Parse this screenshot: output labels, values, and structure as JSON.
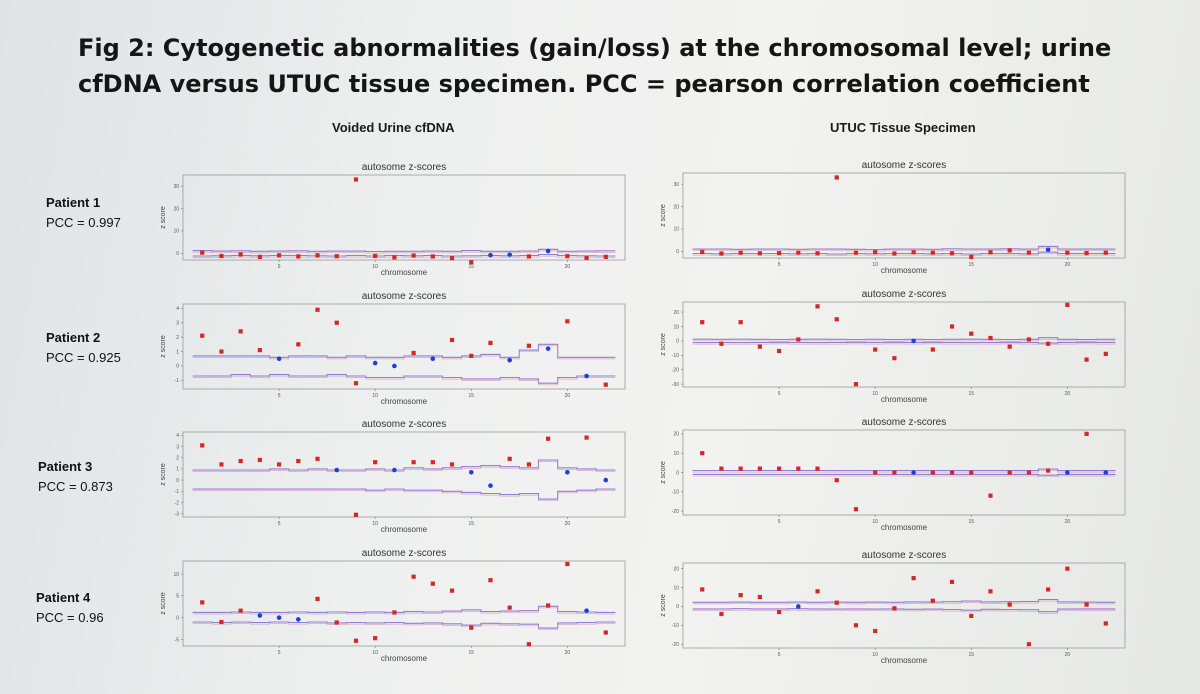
{
  "figure": {
    "title": "Fig 2: Cytogenetic abnormalities (gain/loss) at the chromosomal level; urine cfDNA versus UTUC tissue specimen. PCC = pearson correlation coefficient"
  },
  "columns": [
    {
      "heading": "Voided Urine cfDNA"
    },
    {
      "heading": "UTUC Tissue Specimen"
    }
  ],
  "patients": [
    {
      "name": "Patient 1",
      "pcc": "PCC = 0.997"
    },
    {
      "name": "Patient 2",
      "pcc": "PCC = 0.925"
    },
    {
      "name": "Patient 3",
      "pcc": "PCC = 0.873"
    },
    {
      "name": "Patient 4",
      "pcc": "PCC = 0.96"
    }
  ],
  "chart_data": [
    {
      "type": "scatter",
      "patient": "Patient 1",
      "specimen": "Voided Urine cfDNA",
      "title": "autosome z-scores",
      "xlabel": "chromosome",
      "ylabel": "z score",
      "xlim": [
        0,
        23
      ],
      "ylim": [
        -3,
        35
      ],
      "yticks": [
        0,
        10,
        20,
        30
      ],
      "xticks": [
        5,
        10,
        15,
        20
      ],
      "x": [
        1,
        2,
        3,
        4,
        5,
        6,
        7,
        8,
        9,
        10,
        11,
        12,
        13,
        14,
        15,
        16,
        17,
        18,
        19,
        20,
        21,
        22
      ],
      "y": [
        0.3,
        -1.2,
        -0.5,
        -1.6,
        -0.9,
        -1.4,
        -0.9,
        -1.3,
        33,
        -1.2,
        -1.8,
        -1.0,
        -1.4,
        -2.2,
        -4.0,
        -0.8,
        -0.6,
        -1.4,
        1.0,
        -1.3,
        -2.1,
        -1.6
      ],
      "normal": [
        false,
        false,
        false,
        false,
        false,
        false,
        false,
        false,
        false,
        false,
        false,
        false,
        false,
        false,
        false,
        true,
        true,
        false,
        true,
        false,
        false,
        false
      ],
      "band": {
        "upper": [
          1.2,
          1.0,
          1.1,
          0.9,
          1.0,
          1.1,
          0.9,
          1.0,
          1.0,
          0.8,
          0.9,
          0.9,
          1.0,
          0.9,
          1.2,
          0.9,
          0.9,
          1.0,
          1.8,
          0.9,
          1.0,
          1.1
        ],
        "lower": [
          -1.2,
          -1.1,
          -1.0,
          -1.1,
          -1.0,
          -1.0,
          -1.1,
          -1.2,
          -1.0,
          -1.2,
          -1.0,
          -1.1,
          -1.0,
          -1.2,
          -1.1,
          -1.0,
          -1.1,
          -1.0,
          -0.6,
          -1.0,
          -1.1,
          -1.2
        ]
      }
    },
    {
      "type": "scatter",
      "patient": "Patient 1",
      "specimen": "UTUC Tissue Specimen",
      "title": "autosome z-scores",
      "xlabel": "chromosome",
      "ylabel": "z score",
      "xlim": [
        0,
        23
      ],
      "ylim": [
        -3,
        35
      ],
      "yticks": [
        0,
        10,
        20,
        30
      ],
      "xticks": [
        5,
        10,
        15,
        20
      ],
      "x": [
        1,
        2,
        3,
        4,
        5,
        6,
        7,
        8,
        9,
        10,
        11,
        12,
        13,
        14,
        15,
        16,
        17,
        18,
        19,
        20,
        21,
        22
      ],
      "y": [
        -0.3,
        -1.0,
        -0.6,
        -0.9,
        -0.8,
        -0.6,
        -0.9,
        33,
        -0.6,
        -0.4,
        -1.0,
        -0.4,
        -0.6,
        -0.9,
        -2.5,
        -0.4,
        0.4,
        -0.6,
        0.7,
        -0.6,
        -0.8,
        -0.6
      ],
      "normal": [
        false,
        false,
        false,
        false,
        false,
        false,
        false,
        false,
        false,
        false,
        false,
        false,
        false,
        false,
        false,
        false,
        false,
        false,
        true,
        false,
        false,
        false
      ],
      "band": {
        "upper": [
          1.0,
          1.0,
          0.9,
          1.0,
          1.0,
          0.9,
          1.0,
          1.0,
          0.9,
          0.8,
          1.0,
          1.0,
          0.9,
          1.1,
          1.0,
          1.0,
          1.1,
          1.0,
          2.2,
          1.0,
          1.0,
          1.0
        ],
        "lower": [
          -1.0,
          -1.1,
          -1.0,
          -1.0,
          -1.0,
          -1.1,
          -1.0,
          -1.2,
          -1.0,
          -1.1,
          -1.0,
          -1.0,
          -1.1,
          -1.0,
          -1.2,
          -1.0,
          -1.0,
          -1.1,
          -0.4,
          -1.0,
          -1.0,
          -1.0
        ]
      }
    },
    {
      "type": "scatter",
      "patient": "Patient 2",
      "specimen": "Voided Urine cfDNA",
      "title": "autosome z-scores",
      "xlabel": "chromosome",
      "ylabel": "z score",
      "xlim": [
        0,
        23
      ],
      "ylim": [
        -1.6,
        4.3
      ],
      "yticks": [
        -1,
        0,
        1,
        2,
        3,
        4
      ],
      "xticks": [
        5,
        10,
        15,
        20
      ],
      "x": [
        1,
        2,
        3,
        4,
        5,
        6,
        7,
        8,
        9,
        10,
        11,
        12,
        13,
        14,
        15,
        16,
        17,
        18,
        19,
        20,
        21,
        22
      ],
      "y": [
        2.1,
        1.0,
        2.4,
        1.1,
        0.5,
        1.5,
        3.9,
        3.0,
        -1.2,
        0.2,
        0.0,
        0.9,
        0.5,
        1.8,
        0.7,
        1.6,
        0.4,
        1.4,
        1.2,
        3.1,
        -0.7,
        -1.3
      ],
      "normal": [
        false,
        false,
        false,
        false,
        true,
        false,
        false,
        false,
        false,
        true,
        true,
        false,
        true,
        false,
        false,
        false,
        true,
        false,
        true,
        false,
        true,
        false
      ],
      "band": {
        "upper": [
          0.7,
          0.7,
          0.7,
          0.7,
          0.6,
          0.7,
          0.7,
          0.6,
          0.7,
          0.6,
          0.6,
          0.7,
          0.7,
          0.6,
          0.7,
          0.8,
          0.6,
          1.1,
          1.5,
          0.6,
          0.6,
          0.6
        ],
        "lower": [
          -0.7,
          -0.7,
          -0.6,
          -0.7,
          -0.6,
          -0.7,
          -0.7,
          -0.6,
          -0.7,
          -0.8,
          -0.8,
          -0.7,
          -0.7,
          -0.8,
          -0.9,
          -0.9,
          -0.8,
          -0.9,
          -1.2,
          -0.8,
          -0.7,
          -0.7
        ]
      }
    },
    {
      "type": "scatter",
      "patient": "Patient 2",
      "specimen": "UTUC Tissue Specimen",
      "title": "autosome z-scores",
      "xlabel": "chromosome",
      "ylabel": "z score",
      "xlim": [
        0,
        23
      ],
      "ylim": [
        -32,
        27
      ],
      "yticks": [
        -30,
        -20,
        -10,
        0,
        10,
        20
      ],
      "xticks": [
        5,
        10,
        15,
        20
      ],
      "x": [
        1,
        2,
        3,
        4,
        5,
        6,
        7,
        8,
        9,
        10,
        11,
        12,
        13,
        14,
        15,
        16,
        17,
        18,
        19,
        20,
        21,
        22
      ],
      "y": [
        13,
        -2,
        13,
        -4,
        -7,
        1,
        24,
        15,
        -30,
        -6,
        -12,
        0,
        -6,
        10,
        5,
        2,
        -4,
        1,
        -2,
        25,
        -13,
        -9
      ],
      "normal": [
        false,
        false,
        false,
        false,
        false,
        false,
        false,
        false,
        false,
        false,
        false,
        true,
        false,
        false,
        false,
        false,
        false,
        false,
        false,
        false,
        false,
        false
      ],
      "band": {
        "upper": [
          1.2,
          1.1,
          1.2,
          1.1,
          1.0,
          1.1,
          1.2,
          1.1,
          1.0,
          1.1,
          1.0,
          1.1,
          1.0,
          1.1,
          1.2,
          1.1,
          1.0,
          1.1,
          2.2,
          1.1,
          1.0,
          1.1
        ],
        "lower": [
          -1.2,
          -1.1,
          -1.2,
          -1.1,
          -1.0,
          -1.1,
          -1.2,
          -1.1,
          -1.0,
          -1.1,
          -1.0,
          -1.1,
          -1.0,
          -1.1,
          -1.2,
          -1.1,
          -1.0,
          -1.1,
          -1.5,
          -1.1,
          -1.0,
          -1.1
        ]
      }
    },
    {
      "type": "scatter",
      "patient": "Patient 3",
      "specimen": "Voided Urine cfDNA",
      "title": "autosome z-scores",
      "xlabel": "chromosome",
      "ylabel": "z score",
      "xlim": [
        0,
        23
      ],
      "ylim": [
        -3.3,
        4.3
      ],
      "yticks": [
        -3,
        -2,
        -1,
        0,
        1,
        2,
        3,
        4
      ],
      "xticks": [
        5,
        10,
        15,
        20
      ],
      "x": [
        1,
        2,
        3,
        4,
        5,
        6,
        7,
        8,
        9,
        10,
        11,
        12,
        13,
        14,
        15,
        16,
        17,
        18,
        19,
        20,
        21,
        22
      ],
      "y": [
        3.1,
        1.4,
        1.7,
        1.8,
        1.4,
        1.7,
        1.9,
        0.9,
        -3.1,
        1.6,
        0.9,
        1.6,
        1.6,
        1.4,
        0.7,
        -0.5,
        1.9,
        1.4,
        3.7,
        0.7,
        3.8,
        0.0
      ],
      "normal": [
        false,
        false,
        false,
        false,
        false,
        false,
        false,
        true,
        false,
        false,
        true,
        false,
        false,
        false,
        true,
        true,
        false,
        false,
        false,
        true,
        false,
        true
      ],
      "band": {
        "upper": [
          0.9,
          0.9,
          0.9,
          0.9,
          1.0,
          0.9,
          1.0,
          0.9,
          0.9,
          1.0,
          0.9,
          1.1,
          1.0,
          1.1,
          1.2,
          1.3,
          1.2,
          1.1,
          1.8,
          1.1,
          1.0,
          0.9
        ],
        "lower": [
          -0.8,
          -0.8,
          -0.8,
          -0.8,
          -0.8,
          -0.8,
          -0.8,
          -0.8,
          -0.8,
          -0.9,
          -0.8,
          -0.9,
          -0.9,
          -1.0,
          -1.1,
          -1.2,
          -1.3,
          -1.2,
          -1.7,
          -1.0,
          -0.9,
          -0.8
        ]
      }
    },
    {
      "type": "scatter",
      "patient": "Patient 3",
      "specimen": "UTUC Tissue Specimen",
      "title": "autosome z-scores",
      "xlabel": "chromosome",
      "ylabel": "z score",
      "xlim": [
        0,
        23
      ],
      "ylim": [
        -22,
        22
      ],
      "yticks": [
        -20,
        -10,
        0,
        10,
        20
      ],
      "xticks": [
        5,
        10,
        15,
        20
      ],
      "x": [
        1,
        2,
        3,
        4,
        5,
        6,
        7,
        8,
        9,
        10,
        11,
        12,
        13,
        14,
        15,
        16,
        17,
        18,
        19,
        20,
        21,
        22
      ],
      "y": [
        10,
        2,
        2,
        2,
        2,
        2,
        2,
        -4,
        -19,
        0,
        0,
        0,
        0,
        0,
        0,
        -12,
        0,
        0,
        1,
        0,
        20,
        0
      ],
      "normal": [
        false,
        false,
        false,
        false,
        false,
        false,
        false,
        false,
        false,
        false,
        false,
        true,
        false,
        false,
        false,
        false,
        false,
        false,
        false,
        true,
        false,
        true
      ],
      "band": {
        "upper": [
          1.0,
          1.0,
          1.0,
          1.0,
          1.0,
          1.0,
          1.0,
          1.0,
          1.0,
          1.0,
          1.0,
          1.0,
          1.0,
          1.0,
          1.0,
          1.0,
          1.0,
          1.0,
          1.8,
          1.0,
          1.0,
          1.0
        ],
        "lower": [
          -1.0,
          -1.0,
          -1.0,
          -1.0,
          -1.0,
          -1.0,
          -1.0,
          -1.0,
          -1.0,
          -1.0,
          -1.0,
          -1.0,
          -1.0,
          -1.0,
          -1.0,
          -1.0,
          -1.0,
          -1.0,
          -1.4,
          -1.0,
          -1.0,
          -1.0
        ]
      }
    },
    {
      "type": "scatter",
      "patient": "Patient 4",
      "specimen": "Voided Urine cfDNA",
      "title": "autosome z-scores",
      "xlabel": "chromosome",
      "ylabel": "z score",
      "xlim": [
        0,
        23
      ],
      "ylim": [
        -6.5,
        13
      ],
      "yticks": [
        -5,
        0,
        5,
        10
      ],
      "xticks": [
        5,
        10,
        15,
        20
      ],
      "x": [
        1,
        2,
        3,
        4,
        5,
        6,
        7,
        8,
        9,
        10,
        11,
        12,
        13,
        14,
        15,
        16,
        17,
        18,
        19,
        20,
        21,
        22
      ],
      "y": [
        3.5,
        -1.0,
        1.6,
        0.5,
        0.0,
        -0.4,
        4.3,
        -1.1,
        -5.3,
        -4.7,
        1.2,
        9.4,
        7.8,
        6.2,
        -2.3,
        8.6,
        2.3,
        -6.1,
        2.8,
        12.3,
        1.6,
        -3.4
      ],
      "normal": [
        false,
        false,
        false,
        true,
        true,
        true,
        false,
        false,
        false,
        false,
        false,
        false,
        false,
        false,
        false,
        false,
        false,
        false,
        false,
        false,
        true,
        false
      ],
      "band": {
        "upper": [
          1.2,
          1.2,
          1.3,
          1.2,
          1.2,
          1.3,
          1.2,
          1.3,
          1.2,
          1.3,
          1.2,
          1.4,
          1.3,
          1.5,
          1.8,
          1.4,
          1.5,
          1.6,
          2.6,
          1.4,
          1.3,
          1.2
        ],
        "lower": [
          -1.0,
          -1.1,
          -1.0,
          -1.1,
          -1.0,
          -1.1,
          -1.0,
          -1.2,
          -1.1,
          -1.2,
          -1.1,
          -1.3,
          -1.2,
          -1.4,
          -1.7,
          -1.3,
          -1.4,
          -1.5,
          -2.4,
          -1.2,
          -1.1,
          -1.0
        ]
      }
    },
    {
      "type": "scatter",
      "patient": "Patient 4",
      "specimen": "UTUC Tissue Specimen",
      "title": "autosome z-scores",
      "xlabel": "chromosome",
      "ylabel": "z score",
      "xlim": [
        0,
        23
      ],
      "ylim": [
        -22,
        23
      ],
      "yticks": [
        -20,
        -10,
        0,
        10,
        20
      ],
      "xticks": [
        5,
        10,
        15,
        20
      ],
      "x": [
        1,
        2,
        3,
        4,
        5,
        6,
        7,
        8,
        9,
        10,
        11,
        12,
        13,
        14,
        15,
        16,
        17,
        18,
        19,
        20,
        21,
        22
      ],
      "y": [
        9,
        -4,
        6,
        5,
        -3,
        0,
        8,
        2,
        -10,
        -13,
        -1,
        15,
        3,
        13,
        -5,
        8,
        1,
        -20,
        9,
        20,
        1,
        -9
      ],
      "normal": [
        false,
        false,
        false,
        false,
        false,
        true,
        false,
        false,
        false,
        false,
        false,
        false,
        false,
        false,
        false,
        false,
        false,
        false,
        false,
        false,
        false,
        false
      ],
      "band": {
        "upper": [
          2.2,
          2.2,
          2.3,
          2.2,
          2.2,
          2.3,
          2.2,
          2.3,
          2.2,
          2.3,
          2.2,
          2.4,
          2.3,
          2.5,
          2.9,
          2.4,
          2.5,
          2.6,
          3.6,
          2.4,
          2.3,
          2.2
        ],
        "lower": [
          -1.3,
          -1.3,
          -1.2,
          -1.3,
          -1.3,
          -1.2,
          -1.3,
          -1.4,
          -1.3,
          -1.4,
          -1.3,
          -1.5,
          -1.4,
          -1.6,
          -2.0,
          -1.5,
          -1.6,
          -1.7,
          -2.8,
          -1.4,
          -1.3,
          -1.3
        ]
      }
    }
  ]
}
